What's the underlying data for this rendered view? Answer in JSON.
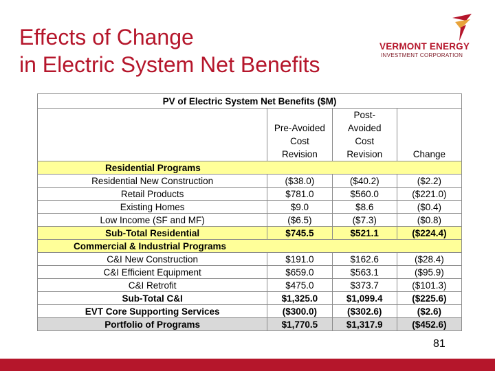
{
  "title_line1": "Effects of Change",
  "title_line2": "in Electric System Net Benefits",
  "logo": {
    "line1": "VERMONT ENERGY",
    "line2": "INVESTMENT CORPORATION",
    "accent": "#b5162b"
  },
  "table": {
    "caption": "PV of Electric System Net Benefits ($M)",
    "col_pre": [
      "Pre-Avoided",
      "Cost",
      "Revision"
    ],
    "col_post": [
      "Post-",
      "Avoided",
      "Cost",
      "Revision"
    ],
    "col_change": "Change",
    "rows": [
      {
        "label": "Residential Programs",
        "type": "section"
      },
      {
        "label": "Residential New Construction",
        "pre": "($38.0)",
        "post": "($40.2)",
        "change": "($2.2)"
      },
      {
        "label": "Retail Products",
        "pre": "$781.0",
        "post": "$560.0",
        "change": "($221.0)"
      },
      {
        "label": "Existing Homes",
        "pre": "$9.0",
        "post": "$8.6",
        "change": "($0.4)"
      },
      {
        "label": "Low Income (SF and MF)",
        "pre": "($6.5)",
        "post": "($7.3)",
        "change": "($0.8)"
      },
      {
        "label": "Sub-Total Residential",
        "pre": "$745.5",
        "post": "$521.1",
        "change": "($224.4)",
        "type": "bold"
      },
      {
        "label": "Commercial & Industrial Programs",
        "type": "section"
      },
      {
        "label": "C&I New Construction",
        "pre": "$191.0",
        "post": "$162.6",
        "change": "($28.4)"
      },
      {
        "label": "C&I  Efficient Equipment",
        "pre": "$659.0",
        "post": "$563.1",
        "change": "($95.9)"
      },
      {
        "label": "C&I Retrofit",
        "pre": "$475.0",
        "post": "$373.7",
        "change": "($101.3)"
      },
      {
        "label": "Sub-Total C&I",
        "pre": "$1,325.0",
        "post": "$1,099.4",
        "change": "($225.6)",
        "type": "subci"
      },
      {
        "label": "EVT Core Supporting Services",
        "pre": "($300.0)",
        "post": "($302.6)",
        "change": "($2.6)",
        "type": "evt"
      },
      {
        "label": "Portfolio of Programs",
        "pre": "$1,770.5",
        "post": "$1,317.9",
        "change": "($452.6)",
        "type": "portfolio"
      }
    ]
  },
  "page_number": "81"
}
